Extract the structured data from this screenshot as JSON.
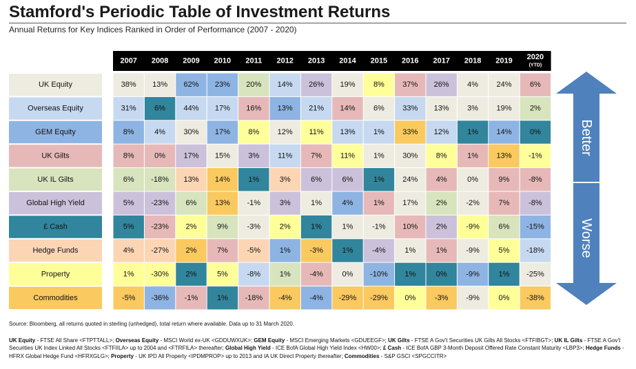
{
  "title": "Stamford's Periodic Table of Investment Returns",
  "subtitle": "Annual Returns for Key Indices Ranked in Order of Performance (2007 - 2020)",
  "source_note": "Source: Bloomberg, all returns quoted in sterling (unhedged), total return where available.   Data up to 31 March 2020.",
  "arrow_labels": {
    "up": "Better",
    "down": "Worse"
  },
  "indices_note": [
    {
      "b": "UK Equity",
      "t": " - FTSE All Share <FTPTTALL>; "
    },
    {
      "b": "Overseas Equity",
      "t": " - MSCI World ex-UK <GDDUWXUK>; "
    },
    {
      "b": "GEM Equity",
      "t": " - MSCI Emerging Markets <GDUEEGF>; "
    },
    {
      "b": "UK Gilts",
      "t": " - FTSE A Gov't Securities UK Gilts All Stocks <FTFIBGT>; "
    },
    {
      "b": "UK IL Gilts",
      "t": " - FTSE A Gov't Securities UK Index Linked All Stocks <FTFIILA> up to 2004 and <FTRFILA> thereafter; "
    },
    {
      "b": "Global High Yield",
      "t": " - ICE BofA Global High Yield Index <HW00>; "
    },
    {
      "b": "£ Cash",
      "t": " - ICE BofA GBP 3-Month Deposit Offered Rate Constant Maturity <LBP3>; "
    },
    {
      "b": "Hedge Funds",
      "t": " - HFRX Global Hedge Fund <HFRXGLG>; "
    },
    {
      "b": "Property",
      "t": " - UK IPD All Property  <IPDMPROP> up to 2013 and IA UK Direct Property thereafter; "
    },
    {
      "b": "Commodities",
      "t": " - S&P GSCI  <SPGCCITR>"
    }
  ],
  "colors": {
    "header_bg": "#000000",
    "header_text": "#ffffff",
    "arrow": "#4f81bd",
    "asset_classes": {
      "UK Equity": "#eeece1",
      "Overseas Equity": "#c6d9f1",
      "GEM Equity": "#8eb4e3",
      "UK Gilts": "#e6b9b8",
      "UK IL Gilts": "#d7e4bd",
      "Global High Yield": "#ccc1da",
      "£ Cash": "#31859c",
      "Hedge Funds": "#fcd5b5",
      "Property": "#ffff99",
      "Commodities": "#fac95f"
    }
  },
  "chart_data": {
    "type": "table",
    "title": "Stamford's Periodic Table of Investment Returns",
    "subtitle": "Annual Returns for Key Indices Ranked in Order of Performance (2007 - 2020)",
    "years": [
      "2007",
      "2008",
      "2009",
      "2010",
      "2011",
      "2012",
      "2013",
      "2014",
      "2015",
      "2016",
      "2017",
      "2018",
      "2019",
      "2020"
    ],
    "ytd_label": "(YTD)",
    "row_labels": [
      "UK Equity",
      "Overseas Equity",
      "GEM Equity",
      "UK Gilts",
      "UK IL Gilts",
      "Global High Yield",
      "£ Cash",
      "Hedge Funds",
      "Property",
      "Commodities"
    ],
    "columns": [
      {
        "year": "2007",
        "cells": [
          {
            "asset": "UK Equity",
            "value": "38%"
          },
          {
            "asset": "Overseas Equity",
            "value": "31%"
          },
          {
            "asset": "GEM Equity",
            "value": "8%"
          },
          {
            "asset": "UK Gilts",
            "value": "8%"
          },
          {
            "asset": "UK IL Gilts",
            "value": "6%"
          },
          {
            "asset": "Global High Yield",
            "value": "5%"
          },
          {
            "asset": "£ Cash",
            "value": "5%"
          },
          {
            "asset": "Hedge Funds",
            "value": "4%"
          },
          {
            "asset": "Property",
            "value": "1%"
          },
          {
            "asset": "Commodities",
            "value": "-5%"
          }
        ]
      },
      {
        "year": "2008",
        "cells": [
          {
            "asset": "UK Equity",
            "value": "13%"
          },
          {
            "asset": "£ Cash",
            "value": "6%"
          },
          {
            "asset": "Overseas Equity",
            "value": "4%"
          },
          {
            "asset": "UK Gilts",
            "value": "0%"
          },
          {
            "asset": "UK IL Gilts",
            "value": "-18%"
          },
          {
            "asset": "Global High Yield",
            "value": "-23%"
          },
          {
            "asset": "UK Gilts",
            "value": "-23%"
          },
          {
            "asset": "Hedge Funds",
            "value": "-27%"
          },
          {
            "asset": "Property",
            "value": "-30%"
          },
          {
            "asset": "GEM Equity",
            "value": "-36%"
          }
        ]
      },
      {
        "year": "2009",
        "cells": [
          {
            "asset": "GEM Equity",
            "value": "62%"
          },
          {
            "asset": "Overseas Equity",
            "value": "44%"
          },
          {
            "asset": "UK Equity",
            "value": "30%"
          },
          {
            "asset": "Global High Yield",
            "value": "17%"
          },
          {
            "asset": "Hedge Funds",
            "value": "13%"
          },
          {
            "asset": "UK IL Gilts",
            "value": "6%"
          },
          {
            "asset": "Property",
            "value": "2%"
          },
          {
            "asset": "Commodities",
            "value": "2%"
          },
          {
            "asset": "£ Cash",
            "value": "2%"
          },
          {
            "asset": "UK Gilts",
            "value": "-1%"
          }
        ]
      },
      {
        "year": "2010",
        "cells": [
          {
            "asset": "GEM Equity",
            "value": "23%"
          },
          {
            "asset": "Overseas Equity",
            "value": "17%"
          },
          {
            "asset": "GEM Equity",
            "value": "17%"
          },
          {
            "asset": "UK Equity",
            "value": "15%"
          },
          {
            "asset": "Commodities",
            "value": "14%"
          },
          {
            "asset": "Commodities",
            "value": "13%"
          },
          {
            "asset": "UK IL Gilts",
            "value": "9%"
          },
          {
            "asset": "UK Gilts",
            "value": "7%"
          },
          {
            "asset": "Property",
            "value": "5%"
          },
          {
            "asset": "£ Cash",
            "value": "1%"
          }
        ]
      },
      {
        "year": "2011",
        "cells": [
          {
            "asset": "UK IL Gilts",
            "value": "20%"
          },
          {
            "asset": "UK Gilts",
            "value": "16%"
          },
          {
            "asset": "Property",
            "value": "8%"
          },
          {
            "asset": "Global High Yield",
            "value": "3%"
          },
          {
            "asset": "£ Cash",
            "value": "1%"
          },
          {
            "asset": "UK Equity",
            "value": "-1%"
          },
          {
            "asset": "UK Equity",
            "value": "-3%"
          },
          {
            "asset": "Hedge Funds",
            "value": "-5%"
          },
          {
            "asset": "Overseas Equity",
            "value": "-8%"
          },
          {
            "asset": "UK Gilts",
            "value": "-18%"
          }
        ]
      },
      {
        "year": "2012",
        "cells": [
          {
            "asset": "Overseas Equity",
            "value": "14%"
          },
          {
            "asset": "GEM Equity",
            "value": "13%"
          },
          {
            "asset": "UK Equity",
            "value": "12%"
          },
          {
            "asset": "Overseas Equity",
            "value": "11%"
          },
          {
            "asset": "Hedge Funds",
            "value": "3%"
          },
          {
            "asset": "Global High Yield",
            "value": "3%"
          },
          {
            "asset": "Property",
            "value": "2%"
          },
          {
            "asset": "GEM Equity",
            "value": "1%"
          },
          {
            "asset": "UK IL Gilts",
            "value": "1%"
          },
          {
            "asset": "Commodities",
            "value": "-4%"
          }
        ]
      },
      {
        "year": "2013",
        "cells": [
          {
            "asset": "Global High Yield",
            "value": "26%"
          },
          {
            "asset": "Overseas Equity",
            "value": "21%"
          },
          {
            "asset": "Property",
            "value": "11%"
          },
          {
            "asset": "UK Gilts",
            "value": "7%"
          },
          {
            "asset": "Global High Yield",
            "value": "6%"
          },
          {
            "asset": "UK Equity",
            "value": "1%"
          },
          {
            "asset": "£ Cash",
            "value": "1%"
          },
          {
            "asset": "Commodities",
            "value": "-3%"
          },
          {
            "asset": "UK Gilts",
            "value": "-4%"
          },
          {
            "asset": "GEM Equity",
            "value": "-4%"
          }
        ]
      },
      {
        "year": "2014",
        "cells": [
          {
            "asset": "UK Equity",
            "value": "19%"
          },
          {
            "asset": "UK Gilts",
            "value": "14%"
          },
          {
            "asset": "Overseas Equity",
            "value": "13%"
          },
          {
            "asset": "Property",
            "value": "11%"
          },
          {
            "asset": "Global High Yield",
            "value": "6%"
          },
          {
            "asset": "GEM Equity",
            "value": "4%"
          },
          {
            "asset": "UK Equity",
            "value": "1%"
          },
          {
            "asset": "£ Cash",
            "value": "1%"
          },
          {
            "asset": "UK Equity",
            "value": "0%"
          },
          {
            "asset": "Commodities",
            "value": "-29%"
          }
        ]
      },
      {
        "year": "2015",
        "cells": [
          {
            "asset": "Property",
            "value": "8%"
          },
          {
            "asset": "UK Equity",
            "value": "6%"
          },
          {
            "asset": "Overseas Equity",
            "value": "1%"
          },
          {
            "asset": "UK Equity",
            "value": "1%"
          },
          {
            "asset": "£ Cash",
            "value": "1%"
          },
          {
            "asset": "UK Gilts",
            "value": "1%"
          },
          {
            "asset": "UK Equity",
            "value": "-1%"
          },
          {
            "asset": "Global High Yield",
            "value": "-4%"
          },
          {
            "asset": "GEM Equity",
            "value": "-10%"
          },
          {
            "asset": "Commodities",
            "value": "-29%"
          }
        ]
      },
      {
        "year": "2016",
        "cells": [
          {
            "asset": "UK Gilts",
            "value": "37%"
          },
          {
            "asset": "Overseas Equity",
            "value": "33%"
          },
          {
            "asset": "Commodities",
            "value": "33%"
          },
          {
            "asset": "UK Equity",
            "value": "30%"
          },
          {
            "asset": "UK Equity",
            "value": "24%"
          },
          {
            "asset": "UK Equity",
            "value": "17%"
          },
          {
            "asset": "UK Gilts",
            "value": "10%"
          },
          {
            "asset": "UK Equity",
            "value": "1%"
          },
          {
            "asset": "£ Cash",
            "value": "1%"
          },
          {
            "asset": "Property",
            "value": "0%"
          }
        ]
      },
      {
        "year": "2017",
        "cells": [
          {
            "asset": "Global High Yield",
            "value": "26%"
          },
          {
            "asset": "UK Equity",
            "value": "13%"
          },
          {
            "asset": "Overseas Equity",
            "value": "12%"
          },
          {
            "asset": "Property",
            "value": "8%"
          },
          {
            "asset": "UK Gilts",
            "value": "4%"
          },
          {
            "asset": "UK IL Gilts",
            "value": "2%"
          },
          {
            "asset": "Global High Yield",
            "value": "2%"
          },
          {
            "asset": "UK Gilts",
            "value": "1%"
          },
          {
            "asset": "£ Cash",
            "value": "0%"
          },
          {
            "asset": "Commodities",
            "value": "-3%"
          }
        ]
      },
      {
        "year": "2018",
        "cells": [
          {
            "asset": "UK Equity",
            "value": "4%"
          },
          {
            "asset": "UK Equity",
            "value": "3%"
          },
          {
            "asset": "£ Cash",
            "value": "1%"
          },
          {
            "asset": "UK Gilts",
            "value": "1%"
          },
          {
            "asset": "UK Equity",
            "value": "0%"
          },
          {
            "asset": "UK Equity",
            "value": "-2%"
          },
          {
            "asset": "Property",
            "value": "-9%"
          },
          {
            "asset": "UK Equity",
            "value": "-9%"
          },
          {
            "asset": "GEM Equity",
            "value": "-9%"
          },
          {
            "asset": "UK Equity",
            "value": "-9%"
          }
        ]
      },
      {
        "year": "2019",
        "cells": [
          {
            "asset": "UK Equity",
            "value": "24%"
          },
          {
            "asset": "UK Equity",
            "value": "19%"
          },
          {
            "asset": "GEM Equity",
            "value": "14%"
          },
          {
            "asset": "Commodities",
            "value": "13%"
          },
          {
            "asset": "UK Gilts",
            "value": "9%"
          },
          {
            "asset": "UK Gilts",
            "value": "7%"
          },
          {
            "asset": "UK IL Gilts",
            "value": "6%"
          },
          {
            "asset": "Property",
            "value": "5%"
          },
          {
            "asset": "£ Cash",
            "value": "1%"
          },
          {
            "asset": "Property",
            "value": "0%"
          }
        ]
      },
      {
        "year": "2020",
        "cells": [
          {
            "asset": "UK Gilts",
            "value": "6%"
          },
          {
            "asset": "UK IL Gilts",
            "value": "2%"
          },
          {
            "asset": "£ Cash",
            "value": "0%"
          },
          {
            "asset": "Property",
            "value": "-1%"
          },
          {
            "asset": "UK Gilts",
            "value": "-8%"
          },
          {
            "asset": "Global High Yield",
            "value": "-8%"
          },
          {
            "asset": "GEM Equity",
            "value": "-15%"
          },
          {
            "asset": "Overseas Equity",
            "value": "-18%"
          },
          {
            "asset": "UK Equity",
            "value": "-25%"
          },
          {
            "asset": "Commodities",
            "value": "-38%"
          }
        ]
      }
    ]
  }
}
